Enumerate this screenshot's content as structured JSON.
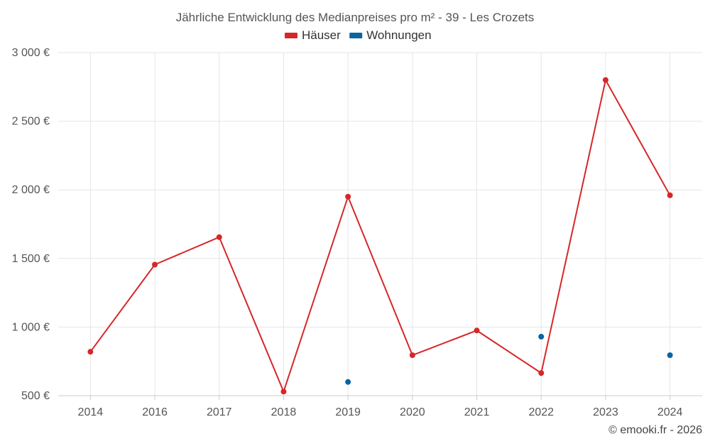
{
  "chart_data": {
    "type": "line",
    "title": "Jährliche Entwicklung des Medianpreises pro m² - 39 - Les Crozets",
    "categories": [
      "2014",
      "2016",
      "2017",
      "2018",
      "2019",
      "2020",
      "2021",
      "2022",
      "2023",
      "2024"
    ],
    "series": [
      {
        "name": "Häuser",
        "color": "#d62728",
        "mode": "line+markers",
        "values": [
          820,
          1455,
          1655,
          530,
          1950,
          795,
          975,
          665,
          2800,
          1960
        ]
      },
      {
        "name": "Wohnungen",
        "color": "#0a64a0",
        "mode": "markers",
        "values": [
          null,
          null,
          null,
          null,
          600,
          null,
          null,
          930,
          null,
          795
        ]
      }
    ],
    "ylim": [
      500,
      3000
    ],
    "yticks": [
      500,
      1000,
      1500,
      2000,
      2500,
      3000
    ],
    "ytick_labels": [
      "500 €",
      "1 000 €",
      "1 500 €",
      "2 000 €",
      "2 500 €",
      "3 000 €"
    ],
    "legend_position": "top-center",
    "grid": true,
    "xlabel": "",
    "ylabel": ""
  },
  "credit": "© emooki.fr - 2026"
}
